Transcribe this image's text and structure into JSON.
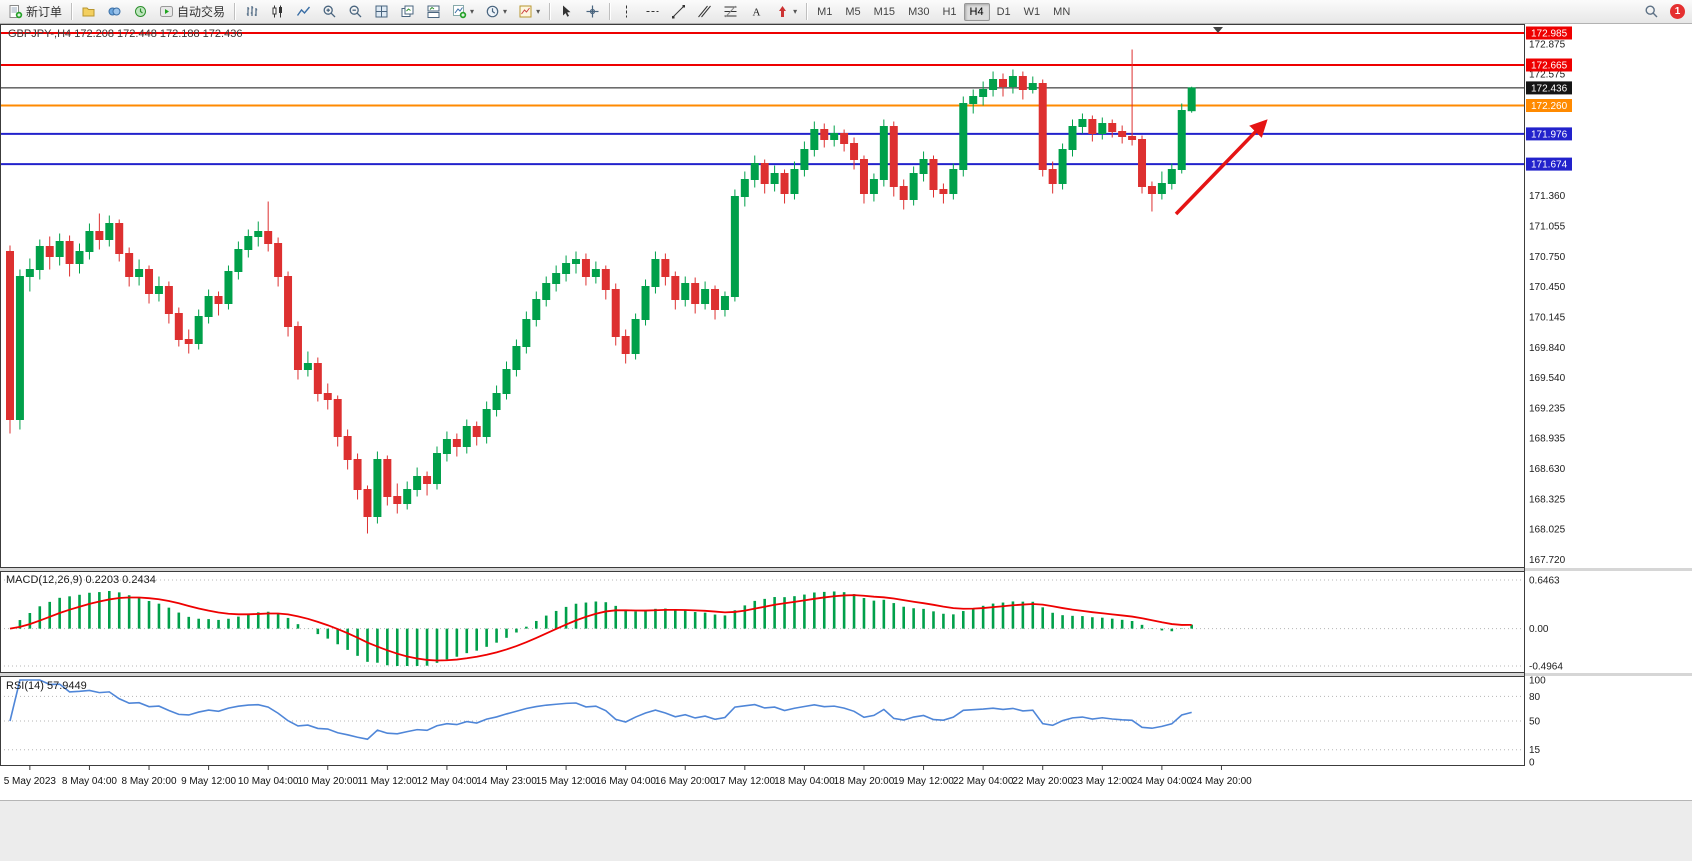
{
  "toolbar": {
    "new_order_label": "新订单",
    "autotrading_label": "自动交易",
    "timeframes": [
      "M1",
      "M5",
      "M15",
      "M30",
      "H1",
      "H4",
      "D1",
      "W1",
      "MN"
    ],
    "active_timeframe": "H4",
    "notification_count": "1"
  },
  "chart_data": {
    "type": "candlestick",
    "symbol": "GBPJPY-",
    "timeframe": "H4",
    "title": "GBPJPY-,H4  172.208 172.448 172.188 172.436",
    "ohlc_display": {
      "open": "172.208",
      "high": "172.448",
      "low": "172.188",
      "close": "172.436"
    },
    "colors": {
      "up": "#00a04a",
      "down": "#dd3030",
      "macd_bar": "#00a04a",
      "macd_signal": "#ee0000",
      "rsi_line": "#4f86d8",
      "arrow": "#e51414"
    },
    "price_axis_plain_labels": [
      172.875,
      172.575,
      171.36,
      171.055,
      170.75,
      170.45,
      170.145,
      169.84,
      169.54,
      169.235,
      168.935,
      168.63,
      168.325,
      168.025,
      167.72
    ],
    "hlines": [
      {
        "price": 172.985,
        "label": "172.985",
        "color": "#ee0000",
        "width": 2
      },
      {
        "price": 172.665,
        "label": "172.665",
        "color": "#ee0000",
        "width": 2
      },
      {
        "price": 172.436,
        "label": "172.436",
        "color": "#151515",
        "width": 1
      },
      {
        "price": 172.26,
        "label": "172.260",
        "color": "#ff8a00",
        "width": 2
      },
      {
        "price": 171.976,
        "label": "171.976",
        "color": "#2222cc",
        "width": 2
      },
      {
        "price": 171.674,
        "label": "171.674",
        "color": "#2222cc",
        "width": 2
      }
    ],
    "candles": [
      [
        170.8,
        170.86,
        168.98,
        169.12
      ],
      [
        169.12,
        170.62,
        169.02,
        170.55
      ],
      [
        170.55,
        170.73,
        170.4,
        170.62
      ],
      [
        170.62,
        170.92,
        170.52,
        170.85
      ],
      [
        170.85,
        170.95,
        170.62,
        170.75
      ],
      [
        170.75,
        170.98,
        170.66,
        170.9
      ],
      [
        170.9,
        170.96,
        170.55,
        170.68
      ],
      [
        170.68,
        170.88,
        170.58,
        170.8
      ],
      [
        170.8,
        171.08,
        170.72,
        171.0
      ],
      [
        171.0,
        171.18,
        170.82,
        170.92
      ],
      [
        170.92,
        171.16,
        170.85,
        171.08
      ],
      [
        171.08,
        171.12,
        170.7,
        170.78
      ],
      [
        170.78,
        170.84,
        170.45,
        170.55
      ],
      [
        170.55,
        170.72,
        170.46,
        170.62
      ],
      [
        170.62,
        170.66,
        170.28,
        170.38
      ],
      [
        170.38,
        170.55,
        170.3,
        170.45
      ],
      [
        170.45,
        170.5,
        170.08,
        170.18
      ],
      [
        170.18,
        170.24,
        169.85,
        169.92
      ],
      [
        169.92,
        170.02,
        169.78,
        169.88
      ],
      [
        169.88,
        170.22,
        169.82,
        170.15
      ],
      [
        170.15,
        170.42,
        170.08,
        170.35
      ],
      [
        170.35,
        170.4,
        170.16,
        170.28
      ],
      [
        170.28,
        170.66,
        170.22,
        170.6
      ],
      [
        170.6,
        170.9,
        170.52,
        170.82
      ],
      [
        170.82,
        171.02,
        170.74,
        170.95
      ],
      [
        170.95,
        171.1,
        170.85,
        171.0
      ],
      [
        171.0,
        171.3,
        170.8,
        170.88
      ],
      [
        170.88,
        170.94,
        170.45,
        170.55
      ],
      [
        170.55,
        170.6,
        169.95,
        170.05
      ],
      [
        170.05,
        170.1,
        169.52,
        169.62
      ],
      [
        169.62,
        169.8,
        169.55,
        169.68
      ],
      [
        169.68,
        169.74,
        169.3,
        169.38
      ],
      [
        169.38,
        169.48,
        169.22,
        169.32
      ],
      [
        169.32,
        169.36,
        168.85,
        168.95
      ],
      [
        168.95,
        169.02,
        168.62,
        168.72
      ],
      [
        168.72,
        168.78,
        168.32,
        168.42
      ],
      [
        168.42,
        168.46,
        167.98,
        168.15
      ],
      [
        168.15,
        168.8,
        168.08,
        168.72
      ],
      [
        168.72,
        168.76,
        168.26,
        168.35
      ],
      [
        168.35,
        168.48,
        168.18,
        168.28
      ],
      [
        168.28,
        168.5,
        168.22,
        168.42
      ],
      [
        168.42,
        168.64,
        168.35,
        168.55
      ],
      [
        168.55,
        168.6,
        168.36,
        168.48
      ],
      [
        168.48,
        168.85,
        168.42,
        168.78
      ],
      [
        168.78,
        169.0,
        168.7,
        168.92
      ],
      [
        168.92,
        168.98,
        168.75,
        168.85
      ],
      [
        168.85,
        169.12,
        168.78,
        169.05
      ],
      [
        169.05,
        169.1,
        168.86,
        168.95
      ],
      [
        168.95,
        169.3,
        168.88,
        169.22
      ],
      [
        169.22,
        169.46,
        169.15,
        169.38
      ],
      [
        169.38,
        169.7,
        169.32,
        169.62
      ],
      [
        169.62,
        169.92,
        169.55,
        169.85
      ],
      [
        169.85,
        170.2,
        169.78,
        170.12
      ],
      [
        170.12,
        170.4,
        170.05,
        170.32
      ],
      [
        170.32,
        170.55,
        170.25,
        170.48
      ],
      [
        170.48,
        170.66,
        170.4,
        170.58
      ],
      [
        170.58,
        170.76,
        170.5,
        170.68
      ],
      [
        170.68,
        170.8,
        170.58,
        170.72
      ],
      [
        170.72,
        170.78,
        170.46,
        170.55
      ],
      [
        170.55,
        170.7,
        170.48,
        170.62
      ],
      [
        170.62,
        170.66,
        170.32,
        170.42
      ],
      [
        170.42,
        170.48,
        169.86,
        169.95
      ],
      [
        169.95,
        170.02,
        169.68,
        169.78
      ],
      [
        169.78,
        170.18,
        169.72,
        170.12
      ],
      [
        170.12,
        170.52,
        170.06,
        170.45
      ],
      [
        170.45,
        170.8,
        170.38,
        170.72
      ],
      [
        170.72,
        170.78,
        170.46,
        170.55
      ],
      [
        170.55,
        170.6,
        170.22,
        170.32
      ],
      [
        170.32,
        170.55,
        170.25,
        170.48
      ],
      [
        170.48,
        170.54,
        170.18,
        170.28
      ],
      [
        170.28,
        170.5,
        170.22,
        170.42
      ],
      [
        170.42,
        170.46,
        170.12,
        170.22
      ],
      [
        170.22,
        170.4,
        170.15,
        170.35
      ],
      [
        170.35,
        171.42,
        170.3,
        171.35
      ],
      [
        171.35,
        171.6,
        171.25,
        171.52
      ],
      [
        171.52,
        171.76,
        171.44,
        171.68
      ],
      [
        171.68,
        171.72,
        171.38,
        171.48
      ],
      [
        171.48,
        171.66,
        171.4,
        171.58
      ],
      [
        171.58,
        171.62,
        171.28,
        171.38
      ],
      [
        171.38,
        171.7,
        171.32,
        171.62
      ],
      [
        171.62,
        171.9,
        171.55,
        171.82
      ],
      [
        171.82,
        172.1,
        171.75,
        172.02
      ],
      [
        172.02,
        172.08,
        171.84,
        171.92
      ],
      [
        171.92,
        172.06,
        171.85,
        171.98
      ],
      [
        171.98,
        172.02,
        171.8,
        171.88
      ],
      [
        171.88,
        171.94,
        171.62,
        171.72
      ],
      [
        171.72,
        171.76,
        171.28,
        171.38
      ],
      [
        171.38,
        171.58,
        171.3,
        171.52
      ],
      [
        171.52,
        172.12,
        171.45,
        172.05
      ],
      [
        172.05,
        172.1,
        171.35,
        171.45
      ],
      [
        171.45,
        171.52,
        171.22,
        171.32
      ],
      [
        171.32,
        171.65,
        171.26,
        171.58
      ],
      [
        171.58,
        171.8,
        171.5,
        171.72
      ],
      [
        171.72,
        171.76,
        171.34,
        171.42
      ],
      [
        171.42,
        171.48,
        171.28,
        171.38
      ],
      [
        171.38,
        171.68,
        171.32,
        171.62
      ],
      [
        171.62,
        172.35,
        171.55,
        172.28
      ],
      [
        172.28,
        172.42,
        172.18,
        172.35
      ],
      [
        172.35,
        172.5,
        172.26,
        172.42
      ],
      [
        172.42,
        172.6,
        172.35,
        172.52
      ],
      [
        172.52,
        172.58,
        172.35,
        172.45
      ],
      [
        172.45,
        172.62,
        172.38,
        172.55
      ],
      [
        172.55,
        172.6,
        172.32,
        172.42
      ],
      [
        172.42,
        172.55,
        172.38,
        172.48
      ],
      [
        172.48,
        172.52,
        171.55,
        171.62
      ],
      [
        171.62,
        171.7,
        171.38,
        171.48
      ],
      [
        171.48,
        171.88,
        171.42,
        171.82
      ],
      [
        171.82,
        172.12,
        171.75,
        172.05
      ],
      [
        172.05,
        172.18,
        171.98,
        172.12
      ],
      [
        172.12,
        172.16,
        171.9,
        171.98
      ],
      [
        171.98,
        172.14,
        171.92,
        172.08
      ],
      [
        172.08,
        172.12,
        171.94,
        172.0
      ],
      [
        172.0,
        172.06,
        171.88,
        171.95
      ],
      [
        171.95,
        172.82,
        171.86,
        171.92
      ],
      [
        171.92,
        171.96,
        171.38,
        171.45
      ],
      [
        171.45,
        171.5,
        171.2,
        171.38
      ],
      [
        171.38,
        171.6,
        171.32,
        171.48
      ],
      [
        171.48,
        171.68,
        171.42,
        171.62
      ],
      [
        171.62,
        172.28,
        171.58,
        172.21
      ],
      [
        172.208,
        172.448,
        172.188,
        172.436
      ]
    ],
    "x_labels": {
      "start_index": 2,
      "step": 6,
      "texts": [
        "5 May 2023",
        "8 May 04:00",
        "8 May 20:00",
        "9 May 12:00",
        "10 May 04:00",
        "10 May 20:00",
        "11 May 12:00",
        "12 May 04:00",
        "14 May 23:00",
        "15 May 12:00",
        "16 May 04:00",
        "16 May 20:00",
        "17 May 12:00",
        "18 May 04:00",
        "18 May 20:00",
        "19 May 12:00",
        "22 May 04:00",
        "22 May 20:00",
        "23 May 12:00",
        "24 May 04:00",
        "24 May 20:00"
      ]
    },
    "macd": {
      "label": "MACD(12,26,9) 0.2203 0.2434",
      "params": [
        12,
        26,
        9
      ],
      "main_value": "0.2203",
      "signal_value": "0.2434",
      "axis_labels": [
        "0.6463",
        "0.00",
        "-0.4964"
      ],
      "axis_values": [
        0.6463,
        0,
        -0.4964
      ]
    },
    "rsi": {
      "label": "RSI(14) 57.9449",
      "period": 14,
      "value": "57.9449",
      "levels": [
        100,
        80,
        50,
        15,
        0
      ]
    }
  }
}
